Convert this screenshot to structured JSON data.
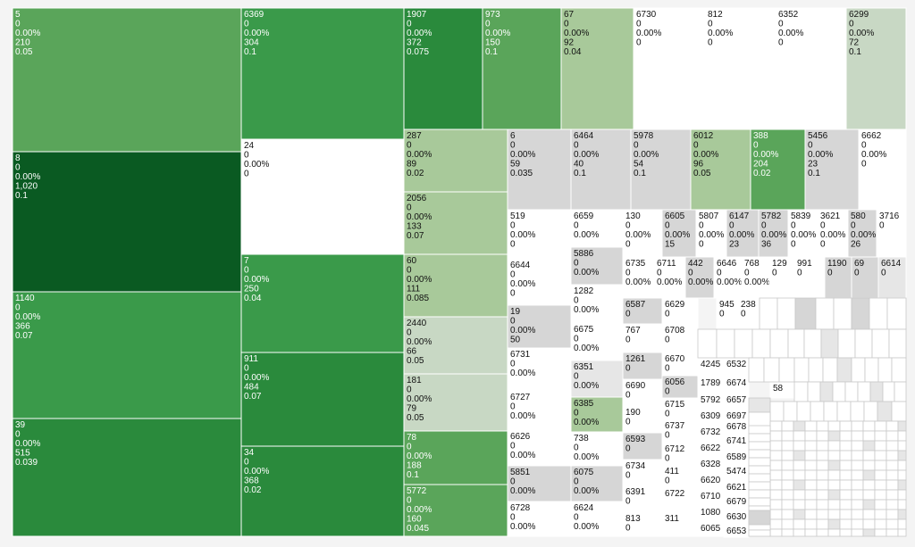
{
  "chart_data": {
    "type": "treemap",
    "fields": [
      "id",
      "count",
      "percent",
      "size",
      "rate"
    ],
    "colors": {
      "white": "#ffffff",
      "gray": "#d6d6d6",
      "light_gray": "#e6e6e6",
      "pale_green": "#c8d8c4",
      "light_green": "#a8c99a",
      "mid_green": "#5aa55a",
      "green": "#3a9a4a",
      "dark_green": "#2a8a3c",
      "darkest_green": "#0a5a22"
    },
    "cells": [
      {
        "lines": [
          "5",
          "0",
          "0.00%",
          "210",
          "0.05"
        ],
        "color": "mid_green"
      },
      {
        "lines": [
          "8",
          "0",
          "0.00%",
          "1,020",
          "0.1"
        ],
        "color": "darkest_green"
      },
      {
        "lines": [
          "1140",
          "0",
          "0.00%",
          "366",
          "0.07"
        ],
        "color": "green"
      },
      {
        "lines": [
          "39",
          "0",
          "0.00%",
          "515",
          "0.039"
        ],
        "color": "dark_green"
      },
      {
        "lines": [
          "6369",
          "0",
          "0.00%",
          "304",
          "0.1"
        ],
        "color": "green"
      },
      {
        "lines": [
          "24",
          "0",
          "0.00%",
          "0"
        ],
        "color": "white"
      },
      {
        "lines": [
          "7",
          "0",
          "0.00%",
          "250",
          "0.04"
        ],
        "color": "green"
      },
      {
        "lines": [
          "911",
          "0",
          "0.00%",
          "484",
          "0.07"
        ],
        "color": "dark_green"
      },
      {
        "lines": [
          "34",
          "0",
          "0.00%",
          "368",
          "0.02"
        ],
        "color": "dark_green"
      },
      {
        "lines": [
          "1907",
          "0",
          "0.00%",
          "372",
          "0.075"
        ],
        "color": "dark_green"
      },
      {
        "lines": [
          "973",
          "0",
          "0.00%",
          "150",
          "0.1"
        ],
        "color": "mid_green"
      },
      {
        "lines": [
          "67",
          "0",
          "0.00%",
          "92",
          "0.04"
        ],
        "color": "light_green"
      },
      {
        "lines": [
          "6730",
          "0",
          "0.00%",
          "0"
        ],
        "color": "white"
      },
      {
        "lines": [
          "812",
          "0",
          "0.00%",
          "0"
        ],
        "color": "white"
      },
      {
        "lines": [
          "6352",
          "0",
          "0.00%",
          "0"
        ],
        "color": "white"
      },
      {
        "lines": [
          "6299",
          "0",
          "0.00%",
          "72",
          "0.1"
        ],
        "color": "pale_green"
      },
      {
        "lines": [
          "287",
          "0",
          "0.00%",
          "89",
          "0.02"
        ],
        "color": "light_green"
      },
      {
        "lines": [
          "2056",
          "0",
          "0.00%",
          "133",
          "0.07"
        ],
        "color": "light_green"
      },
      {
        "lines": [
          "60",
          "0",
          "0.00%",
          "111",
          "0.085"
        ],
        "color": "light_green"
      },
      {
        "lines": [
          "2440",
          "0",
          "0.00%",
          "66",
          "0.05"
        ],
        "color": "pale_green"
      },
      {
        "lines": [
          "181",
          "0",
          "0.00%",
          "79",
          "0.05"
        ],
        "color": "pale_green"
      },
      {
        "lines": [
          "78",
          "0",
          "0.00%",
          "188",
          "0.1"
        ],
        "color": "mid_green"
      },
      {
        "lines": [
          "5772",
          "0",
          "0.00%",
          "160",
          "0.045"
        ],
        "color": "mid_green"
      },
      {
        "lines": [
          "6",
          "0",
          "0.00%",
          "59",
          "0.035"
        ],
        "color": "gray"
      },
      {
        "lines": [
          "6464",
          "0",
          "0.00%",
          "40",
          "0.1"
        ],
        "color": "gray"
      },
      {
        "lines": [
          "5978",
          "0",
          "0.00%",
          "54",
          "0.1"
        ],
        "color": "gray"
      },
      {
        "lines": [
          "6012",
          "0",
          "0.00%",
          "96",
          "0.05"
        ],
        "color": "light_green"
      },
      {
        "lines": [
          "388",
          "0",
          "0.00%",
          "204",
          "0.02"
        ],
        "color": "mid_green"
      },
      {
        "lines": [
          "5456",
          "0",
          "0.00%",
          "23",
          "0.1"
        ],
        "color": "gray"
      },
      {
        "lines": [
          "6662",
          "0",
          "0.00%",
          "0"
        ],
        "color": "white"
      },
      {
        "lines": [
          "519",
          "0",
          "0.00%",
          "0"
        ],
        "color": "white"
      },
      {
        "lines": [
          "6659",
          "0",
          "0.00%"
        ],
        "color": "white"
      },
      {
        "lines": [
          "130",
          "0",
          "0.00%",
          "0"
        ],
        "color": "white"
      },
      {
        "lines": [
          "6605",
          "0",
          "0.00%",
          "15"
        ],
        "color": "gray"
      },
      {
        "lines": [
          "5807",
          "0",
          "0.00%",
          "0"
        ],
        "color": "white"
      },
      {
        "lines": [
          "6147",
          "0",
          "0.00%",
          "23"
        ],
        "color": "gray"
      },
      {
        "lines": [
          "5782",
          "0",
          "0.00%",
          "36"
        ],
        "color": "gray"
      },
      {
        "lines": [
          "5839",
          "0",
          "0.00%",
          "0"
        ],
        "color": "white"
      },
      {
        "lines": [
          "3621",
          "0",
          "0.00%",
          "0"
        ],
        "color": "white"
      },
      {
        "lines": [
          "580",
          "0",
          "0.00%",
          "26"
        ],
        "color": "gray"
      },
      {
        "lines": [
          "3716",
          "0"
        ],
        "color": "white"
      },
      {
        "lines": [
          "6644",
          "0",
          "0.00%",
          "0"
        ],
        "color": "white"
      },
      {
        "lines": [
          "5886",
          "0",
          "0.00%"
        ],
        "color": "gray"
      },
      {
        "lines": [
          "6735",
          "0",
          "0.00%"
        ],
        "color": "white"
      },
      {
        "lines": [
          "6711",
          "0",
          "0.00%"
        ],
        "color": "white"
      },
      {
        "lines": [
          "442",
          "0",
          "0.00%"
        ],
        "color": "gray"
      },
      {
        "lines": [
          "6646",
          "0",
          "0.00%"
        ],
        "color": "white"
      },
      {
        "lines": [
          "768",
          "0",
          "0.00%"
        ],
        "color": "white"
      },
      {
        "lines": [
          "129",
          "0"
        ],
        "color": "white"
      },
      {
        "lines": [
          "991",
          "0"
        ],
        "color": "white"
      },
      {
        "lines": [
          "1190",
          "0"
        ],
        "color": "gray"
      },
      {
        "lines": [
          "69",
          "0"
        ],
        "color": "gray"
      },
      {
        "lines": [
          "6614",
          "0"
        ],
        "color": "light_gray"
      },
      {
        "lines": [
          "1282",
          "0",
          "0.00%"
        ],
        "color": "white"
      },
      {
        "lines": [
          "19",
          "0",
          "0.00%",
          "50"
        ],
        "color": "gray"
      },
      {
        "lines": [
          "6587",
          "0"
        ],
        "color": "gray"
      },
      {
        "lines": [
          "6629",
          "0"
        ],
        "color": "white"
      },
      {
        "lines": [
          "945",
          "0"
        ],
        "color": "white"
      },
      {
        "lines": [
          "238",
          "0"
        ],
        "color": "white"
      },
      {
        "lines": [
          "6675",
          "0",
          "0.00%"
        ],
        "color": "white"
      },
      {
        "lines": [
          "767",
          "0"
        ],
        "color": "white"
      },
      {
        "lines": [
          "6708",
          "0"
        ],
        "color": "white"
      },
      {
        "lines": [
          "6731",
          "0",
          "0.00%"
        ],
        "color": "white"
      },
      {
        "lines": [
          "1261",
          "0"
        ],
        "color": "gray"
      },
      {
        "lines": [
          "6670",
          "0"
        ],
        "color": "white"
      },
      {
        "lines": [
          "6351",
          "0",
          "0.00%"
        ],
        "color": "light_gray"
      },
      {
        "lines": [
          "4245"
        ],
        "color": "white"
      },
      {
        "lines": [
          "6532"
        ],
        "color": "white"
      },
      {
        "lines": [
          "6690",
          "0"
        ],
        "color": "white"
      },
      {
        "lines": [
          "6056",
          "0"
        ],
        "color": "gray"
      },
      {
        "lines": [
          "1789"
        ],
        "color": "white"
      },
      {
        "lines": [
          "6674"
        ],
        "color": "white"
      },
      {
        "lines": [
          "58"
        ],
        "color": "white"
      },
      {
        "lines": [
          "6727",
          "0",
          "0.00%"
        ],
        "color": "white"
      },
      {
        "lines": [
          "6385",
          "0",
          "0.00%"
        ],
        "color": "light_green"
      },
      {
        "lines": [
          "6715",
          "0"
        ],
        "color": "white"
      },
      {
        "lines": [
          "5792"
        ],
        "color": "white"
      },
      {
        "lines": [
          "6657"
        ],
        "color": "white"
      },
      {
        "lines": [
          "190",
          "0"
        ],
        "color": "white"
      },
      {
        "lines": [
          "6309"
        ],
        "color": "white"
      },
      {
        "lines": [
          "6697"
        ],
        "color": "white"
      },
      {
        "lines": [
          "6737",
          "0"
        ],
        "color": "white"
      },
      {
        "lines": [
          "6678"
        ],
        "color": "white"
      },
      {
        "lines": [
          "6626",
          "0",
          "0.00%"
        ],
        "color": "white"
      },
      {
        "lines": [
          "738",
          "0",
          "0.00%"
        ],
        "color": "white"
      },
      {
        "lines": [
          "6593",
          "0"
        ],
        "color": "gray"
      },
      {
        "lines": [
          "6732"
        ],
        "color": "white"
      },
      {
        "lines": [
          "6741"
        ],
        "color": "white"
      },
      {
        "lines": [
          "6712",
          "0"
        ],
        "color": "white"
      },
      {
        "lines": [
          "6622"
        ],
        "color": "white"
      },
      {
        "lines": [
          "6589"
        ],
        "color": "white"
      },
      {
        "lines": [
          "6734",
          "0"
        ],
        "color": "white"
      },
      {
        "lines": [
          "6328"
        ],
        "color": "white"
      },
      {
        "lines": [
          "5474"
        ],
        "color": "white"
      },
      {
        "lines": [
          "5851",
          "0",
          "0.00%"
        ],
        "color": "gray"
      },
      {
        "lines": [
          "6075",
          "0",
          "0.00%"
        ],
        "color": "gray"
      },
      {
        "lines": [
          "411",
          "0"
        ],
        "color": "white"
      },
      {
        "lines": [
          "6620"
        ],
        "color": "white"
      },
      {
        "lines": [
          "6621"
        ],
        "color": "white"
      },
      {
        "lines": [
          "6391",
          "0"
        ],
        "color": "white"
      },
      {
        "lines": [
          "6722"
        ],
        "color": "white"
      },
      {
        "lines": [
          "6710"
        ],
        "color": "white"
      },
      {
        "lines": [
          "6679"
        ],
        "color": "white"
      },
      {
        "lines": [
          "6728",
          "0",
          "0.00%"
        ],
        "color": "white"
      },
      {
        "lines": [
          "6624",
          "0",
          "0.00%"
        ],
        "color": "white"
      },
      {
        "lines": [
          "1080"
        ],
        "color": "white"
      },
      {
        "lines": [
          "6630"
        ],
        "color": "white"
      },
      {
        "lines": [
          "813",
          "0"
        ],
        "color": "white"
      },
      {
        "lines": [
          "311"
        ],
        "color": "white"
      },
      {
        "lines": [
          "6065"
        ],
        "color": "white"
      },
      {
        "lines": [
          "6653"
        ],
        "color": "white"
      }
    ]
  }
}
